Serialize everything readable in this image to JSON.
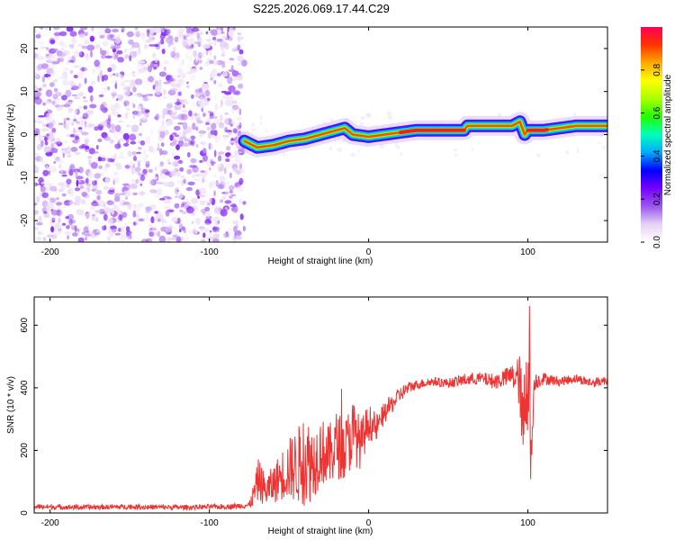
{
  "title": "S225.2026.069.17.44.C29",
  "chart_data": [
    {
      "type": "heatmap",
      "name": "spectrogram",
      "xlabel": "Height of straight line (km)",
      "ylabel": "Frequency (Hz)",
      "xlim": [
        -210,
        150
      ],
      "ylim": [
        -25,
        25
      ],
      "xticks": [
        -200,
        -100,
        0,
        100
      ],
      "yticks": [
        -20,
        -10,
        0,
        10,
        20
      ],
      "noise_region_x": [
        -210,
        -78
      ],
      "signal_region_x": [
        -78,
        150
      ],
      "ridge": {
        "x": [
          -78,
          -70,
          -60,
          -50,
          -40,
          -30,
          -20,
          -15,
          -10,
          0,
          10,
          20,
          30,
          40,
          50,
          60,
          62,
          70,
          80,
          90,
          95,
          98,
          100,
          110,
          120,
          130,
          140,
          150
        ],
        "frequency": [
          -1.5,
          -3,
          -2.5,
          -1.5,
          -1,
          0,
          1,
          1.5,
          0,
          -0.5,
          0,
          0.5,
          1,
          1,
          1,
          1,
          2,
          2,
          2,
          2,
          3,
          0,
          1,
          1,
          1.5,
          2,
          2,
          2
        ]
      },
      "colorbar": {
        "label": "Normalized spectral amplitude",
        "ticks": [
          "0.0",
          "0.2",
          "0.4",
          "0.6",
          "0.8"
        ],
        "range": [
          0,
          1
        ],
        "colors": [
          "#ffffff",
          "#e6d2f5",
          "#9955ee",
          "#7700ff",
          "#0000ff",
          "#00aaff",
          "#00ffbb",
          "#22ff00",
          "#aaff00",
          "#ffff00",
          "#ffaa00",
          "#ff3300",
          "#ff0055"
        ]
      }
    },
    {
      "type": "line",
      "name": "snr",
      "xlabel": "Height of straight line (km)",
      "ylabel": "SNR (10 * v/v)",
      "xlim": [
        -210,
        150
      ],
      "ylim": [
        0,
        690
      ],
      "xticks": [
        -200,
        -100,
        0,
        100
      ],
      "yticks": [
        0,
        200,
        400,
        600
      ],
      "color": "#ee3333",
      "series": [
        {
          "name": "SNR",
          "x": [
            -210,
            -180,
            -150,
            -120,
            -90,
            -75,
            -72,
            -69,
            -65,
            -60,
            -55,
            -50,
            -45,
            -40,
            -35,
            -30,
            -25,
            -20,
            -15,
            -10,
            -5,
            0,
            5,
            10,
            15,
            20,
            25,
            30,
            40,
            50,
            60,
            70,
            80,
            90,
            95,
            97,
            99,
            101,
            102,
            104,
            110,
            120,
            130,
            140,
            150
          ],
          "y": [
            20,
            18,
            20,
            18,
            20,
            25,
            60,
            110,
            70,
            90,
            120,
            140,
            150,
            170,
            160,
            200,
            180,
            220,
            200,
            260,
            220,
            290,
            270,
            320,
            350,
            380,
            400,
            410,
            420,
            415,
            425,
            430,
            420,
            440,
            420,
            230,
            420,
            500,
            150,
            420,
            430,
            420,
            430,
            415,
            425
          ],
          "noise_amplitude": [
            8,
            8,
            8,
            8,
            8,
            10,
            40,
            70,
            50,
            60,
            80,
            100,
            120,
            150,
            120,
            110,
            100,
            110,
            100,
            110,
            80,
            60,
            45,
            35,
            30,
            25,
            20,
            15,
            15,
            15,
            20,
            20,
            25,
            35,
            90,
            170,
            200,
            180,
            120,
            30,
            20,
            15,
            15,
            15,
            15
          ]
        }
      ]
    }
  ]
}
